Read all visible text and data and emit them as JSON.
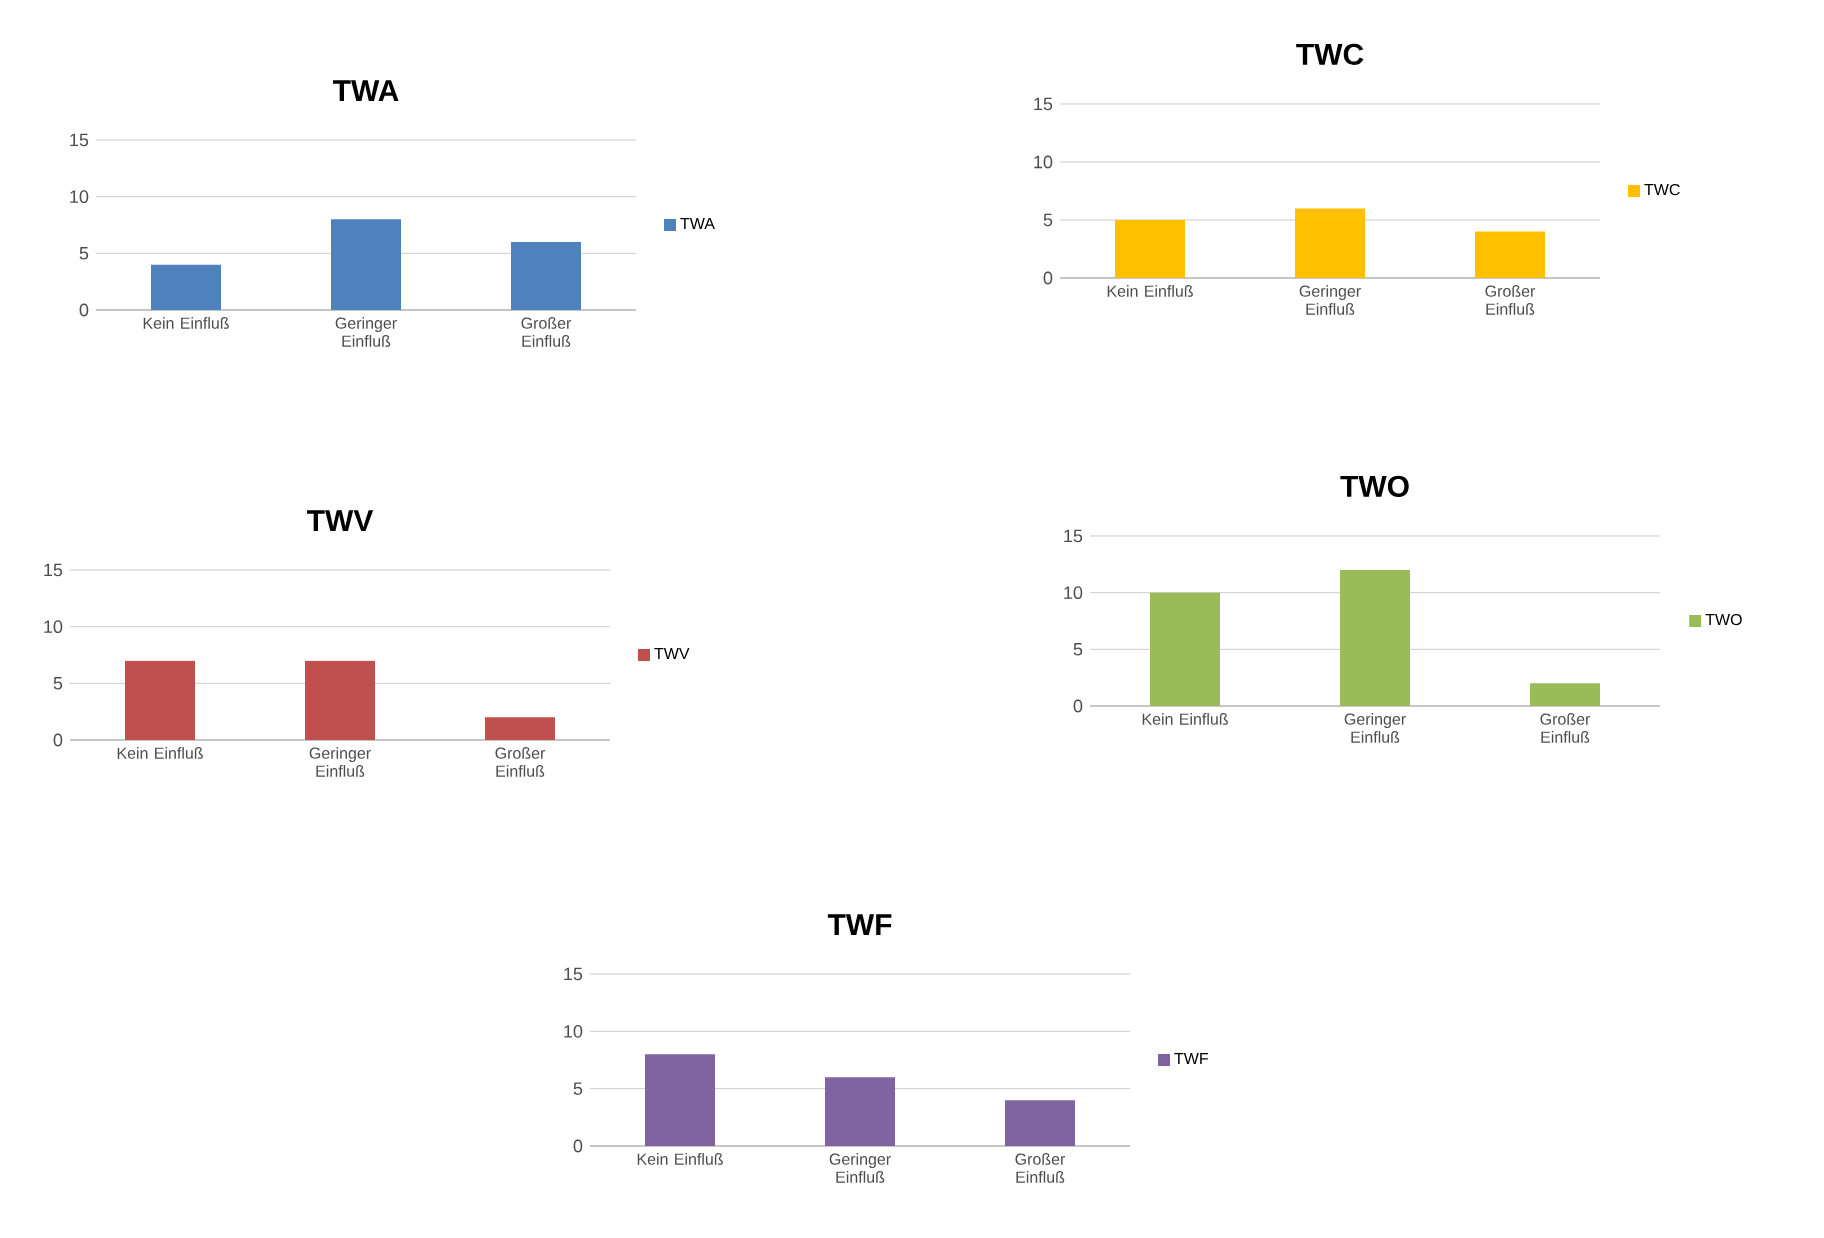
{
  "chart_data": [
    {
      "type": "bar",
      "title": "TWA",
      "categories": [
        "Kein Einfluß",
        "Geringer Einfluß",
        "Großer Einfluß"
      ],
      "series": [
        {
          "name": "TWA",
          "color": "#4f81bd",
          "values": [
            4,
            8,
            6
          ]
        }
      ],
      "ylim": [
        0,
        15
      ],
      "yticks": [
        0,
        5,
        10,
        15
      ],
      "grid": "y",
      "legend": "right"
    },
    {
      "type": "bar",
      "title": "TWC",
      "categories": [
        "Kein Einfluß",
        "Geringer Einfluß",
        "Großer Einfluß"
      ],
      "series": [
        {
          "name": "TWC",
          "color": "#ffc000",
          "values": [
            5,
            6,
            4
          ]
        }
      ],
      "ylim": [
        0,
        15
      ],
      "yticks": [
        0,
        5,
        10,
        15
      ],
      "grid": "y",
      "legend": "right"
    },
    {
      "type": "bar",
      "title": "TWV",
      "categories": [
        "Kein Einfluß",
        "Geringer Einfluß",
        "Großer Einfluß"
      ],
      "series": [
        {
          "name": "TWV",
          "color": "#c0504d",
          "values": [
            7,
            7,
            2
          ]
        }
      ],
      "ylim": [
        0,
        15
      ],
      "yticks": [
        0,
        5,
        10,
        15
      ],
      "grid": "y",
      "legend": "right"
    },
    {
      "type": "bar",
      "title": "TWO",
      "categories": [
        "Kein Einfluß",
        "Geringer Einfluß",
        "Großer Einfluß"
      ],
      "series": [
        {
          "name": "TWO",
          "color": "#9bbb59",
          "values": [
            10,
            12,
            2
          ]
        }
      ],
      "ylim": [
        0,
        15
      ],
      "yticks": [
        0,
        5,
        10,
        15
      ],
      "grid": "y",
      "legend": "right"
    },
    {
      "type": "bar",
      "title": "TWF",
      "categories": [
        "Kein Einfluß",
        "Geringer Einfluß",
        "Großer Einfluß"
      ],
      "series": [
        {
          "name": "TWF",
          "color": "#8064a2",
          "values": [
            8,
            6,
            4
          ]
        }
      ],
      "ylim": [
        0,
        15
      ],
      "yticks": [
        0,
        5,
        10,
        15
      ],
      "grid": "y",
      "legend": "right"
    }
  ]
}
